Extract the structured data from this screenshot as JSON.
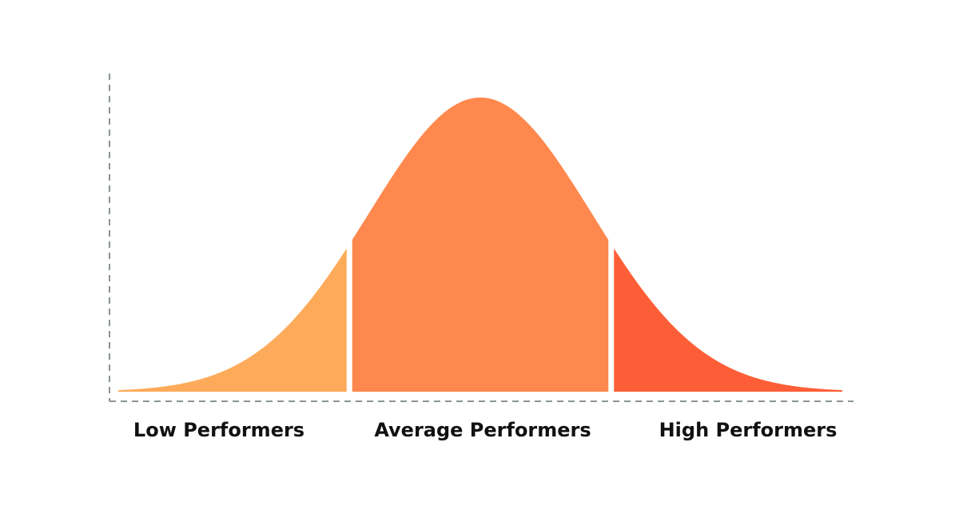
{
  "chart_data": {
    "type": "area",
    "title": "",
    "xlabel": "",
    "ylabel": "",
    "distribution": "normal",
    "mean": 0,
    "std": 1,
    "xlim": [
      -3.25,
      3.25
    ],
    "ylim": [
      0,
      1.08
    ],
    "grid": false,
    "axes": {
      "x": "dashed",
      "y": "dashed"
    },
    "series": [
      {
        "name": "Low Performers",
        "x_range": [
          -3.25,
          -1.2
        ],
        "color": "#FDAB5A"
      },
      {
        "name": "Average Performers",
        "x_range": [
          -1.15,
          1.15
        ],
        "color": "#FE884D"
      },
      {
        "name": "High Performers",
        "x_range": [
          1.2,
          3.25
        ],
        "color": "#FE5E37"
      }
    ],
    "axis_color": "#8A9690"
  }
}
